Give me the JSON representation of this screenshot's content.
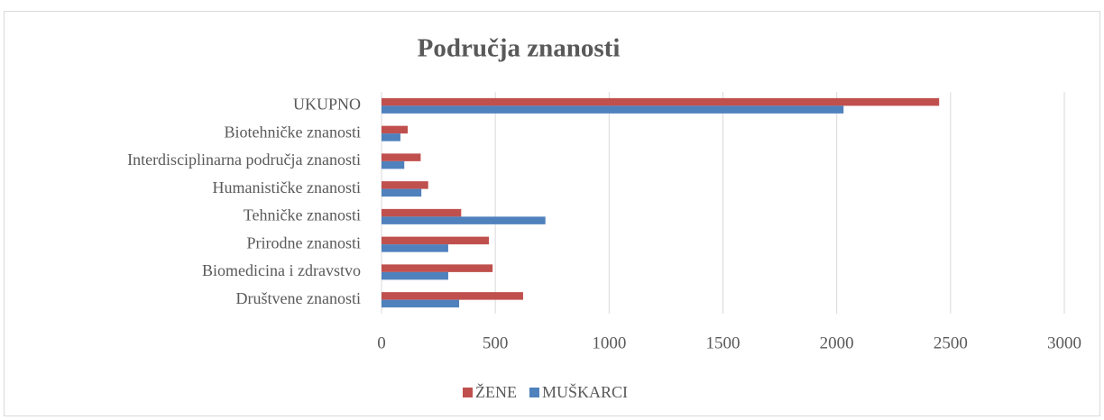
{
  "chart_data": {
    "type": "hbar",
    "title": "Područja znanosti",
    "categories": [
      "UKUPNO",
      "Biotehničke znanosti",
      "Interdisciplinarna područja znanosti",
      "Humanističke znanosti",
      "Tehničke znanosti",
      "Prirodne znanosti",
      "Biomedicina i zdravstvo",
      "Društvene znanosti"
    ],
    "series": [
      {
        "name": "ŽENE",
        "color": "#c0504d",
        "values": [
          2450,
          115,
          172,
          205,
          350,
          472,
          488,
          622
        ]
      },
      {
        "name": "MUŠKARCI",
        "color": "#4f81bd",
        "values": [
          2030,
          83,
          100,
          175,
          720,
          293,
          293,
          341
        ]
      }
    ],
    "xlim": [
      0,
      3000
    ],
    "xticks": [
      0,
      500,
      1000,
      1500,
      2000,
      2500,
      3000
    ],
    "grid": true,
    "legend": "bottom"
  }
}
